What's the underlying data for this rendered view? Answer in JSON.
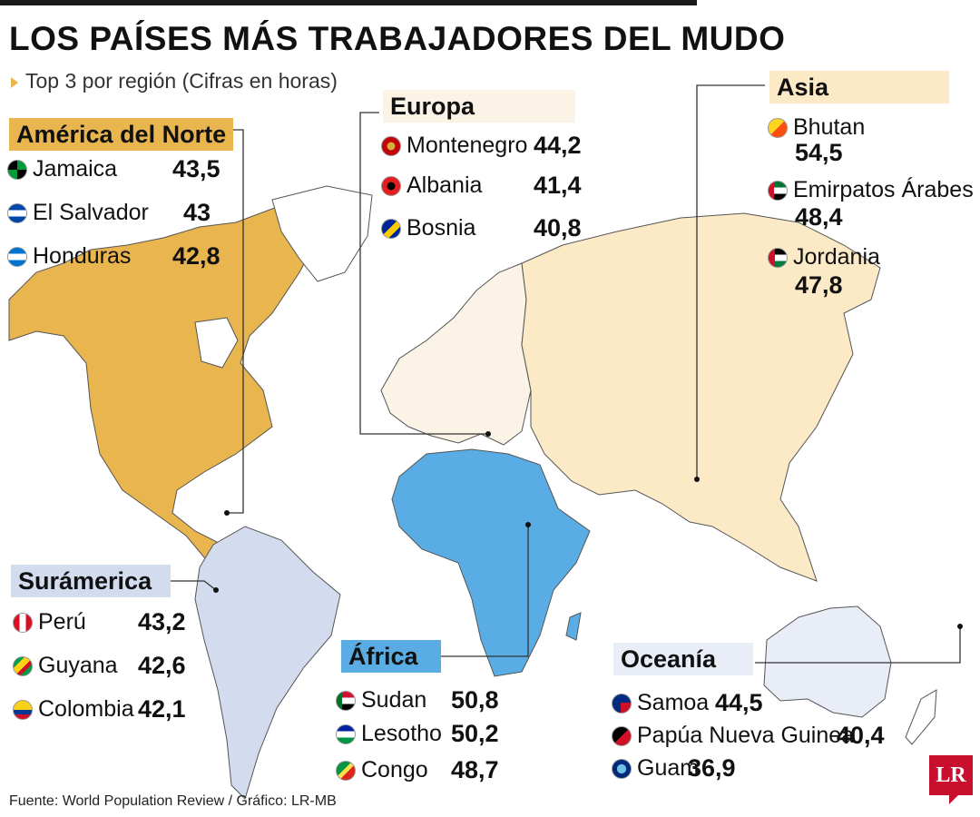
{
  "title": "LOS PAÍSES MÁS TRABAJADORES DEL MUDO",
  "subtitle": "Top 3 por región (Cifras en horas)",
  "footer": "Fuente: World Population Review / Gráfico: LR-MB",
  "logo": "LR",
  "colors": {
    "north_america": "#e8b54e",
    "south_america": "#d3dcef",
    "europe": "#fbf4e6",
    "africa": "#59ade4",
    "asia": "#fce9c5",
    "oceania": "#e8edf7",
    "other_land": "#ffffff",
    "accent": "#c8102e"
  },
  "regions": {
    "north_america": {
      "label": "América del Norte",
      "label_bg": "#e8b54e",
      "countries": [
        {
          "name": "Jamaica",
          "value": "43,5",
          "flag": "flag-jamaica-icon"
        },
        {
          "name": "El Salvador",
          "value": "43",
          "flag": "flag-el-salvador-icon"
        },
        {
          "name": "Honduras",
          "value": "42,8",
          "flag": "flag-honduras-icon"
        }
      ]
    },
    "europe": {
      "label": "Europa",
      "label_bg": "#fbf4e6",
      "countries": [
        {
          "name": "Montenegro",
          "value": "44,2",
          "flag": "flag-montenegro-icon"
        },
        {
          "name": "Albania",
          "value": "41,4",
          "flag": "flag-albania-icon"
        },
        {
          "name": "Bosnia",
          "value": "40,8",
          "flag": "flag-bosnia-icon"
        }
      ]
    },
    "asia": {
      "label": "Asia",
      "label_bg": "#fce9c5",
      "countries": [
        {
          "name": "Bhutan",
          "value": "54,5",
          "flag": "flag-bhutan-icon"
        },
        {
          "name": "Emirpatos Árabes",
          "value": "48,4",
          "flag": "flag-uae-icon"
        },
        {
          "name": "Jordania",
          "value": "47,8",
          "flag": "flag-jordan-icon"
        }
      ]
    },
    "south_america": {
      "label": "Surámerica",
      "label_bg": "#d3dcef",
      "countries": [
        {
          "name": "Perú",
          "value": "43,2",
          "flag": "flag-peru-icon"
        },
        {
          "name": "Guyana",
          "value": "42,6",
          "flag": "flag-guyana-icon"
        },
        {
          "name": "Colombia",
          "value": "42,1",
          "flag": "flag-colombia-icon"
        }
      ]
    },
    "africa": {
      "label": "África",
      "label_bg": "#59ade4",
      "countries": [
        {
          "name": "Sudan",
          "value": "50,8",
          "flag": "flag-sudan-icon"
        },
        {
          "name": "Lesotho",
          "value": "50,2",
          "flag": "flag-lesotho-icon"
        },
        {
          "name": "Congo",
          "value": "48,7",
          "flag": "flag-congo-icon"
        }
      ]
    },
    "oceania": {
      "label": "Oceanía",
      "label_bg": "#e8edf7",
      "countries": [
        {
          "name": "Samoa",
          "value": "44,5",
          "flag": "flag-samoa-icon"
        },
        {
          "name": "Papúa Nueva Guinea",
          "value": "40,4",
          "flag": "flag-papua-new-guinea-icon"
        },
        {
          "name": "Guam",
          "value": "36,9",
          "flag": "flag-guam-icon"
        }
      ]
    }
  }
}
